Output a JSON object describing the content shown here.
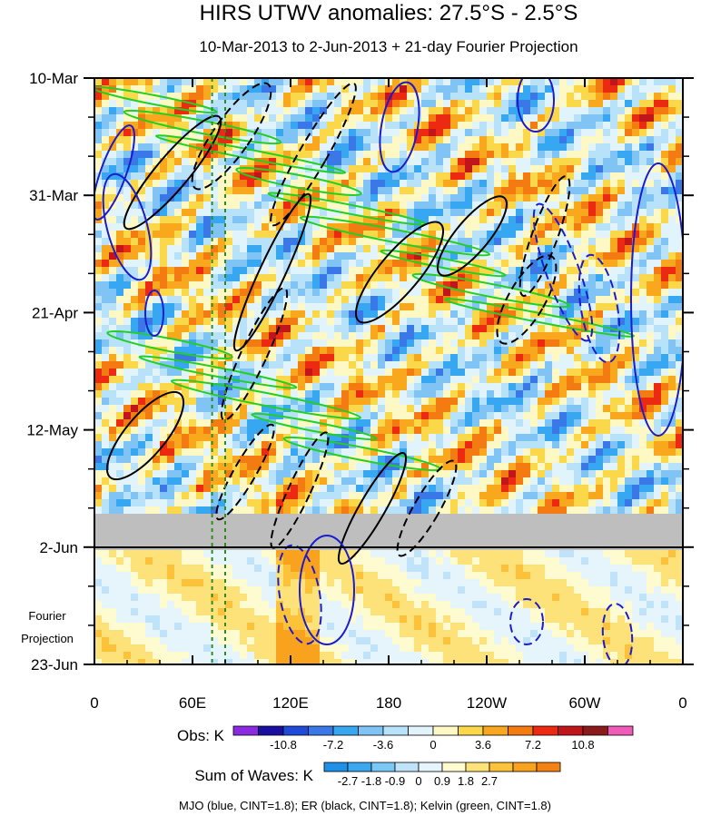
{
  "chart_data": {
    "type": "heatmap",
    "title": "HIRS UTWV anomalies: 27.5°S - 2.5°S",
    "subtitle": "10-Mar-2013 to 2-Jun-2013 + 21-day Fourier Projection",
    "x_ticks": [
      "0",
      "60E",
      "120E",
      "180",
      "120W",
      "60W",
      "0"
    ],
    "x_range": [
      0,
      360
    ],
    "y_ticks": [
      "10-Mar",
      "31-Mar",
      "21-Apr",
      "12-May",
      "2-Jun",
      "23-Jun"
    ],
    "y_range_days": [
      0,
      105
    ],
    "projection_label": [
      "Fourier",
      "Projection"
    ],
    "projection_start_day": 84,
    "observations": {
      "label": "Obs: K",
      "colorbar_labels": [
        "-10.8",
        "-7.2",
        "-3.6",
        "0",
        "3.6",
        "7.2",
        "10.8"
      ],
      "levels": [
        -12.6,
        -10.8,
        -9,
        -7.2,
        -5.4,
        -3.6,
        -1.8,
        0,
        1.8,
        3.6,
        5.4,
        7.2,
        9,
        10.8,
        12.6
      ],
      "colors": [
        "#8a2be2",
        "#1a0fa0",
        "#1f4bd8",
        "#3a78e8",
        "#36a7f0",
        "#7fc4f5",
        "#b8e2fa",
        "#e2f4fb",
        "#fdf8c4",
        "#fbd84a",
        "#f9a81e",
        "#f47b12",
        "#ec2a12",
        "#c0151a",
        "#8b1a1a",
        "#f05ab8"
      ]
    },
    "sum_of_waves": {
      "label": "Sum of Waves: K",
      "colorbar_labels": [
        "-2.7",
        "-1.8",
        "-0.9",
        "0",
        "0.9",
        "1.8",
        "2.7"
      ],
      "colors": [
        "#1e90e8",
        "#3aa8f0",
        "#7ac8f5",
        "#bfe4f9",
        "#e6f5fb",
        "#fffbd0",
        "#fde27a",
        "#fbc23a",
        "#f9a21e",
        "#f48212"
      ]
    },
    "contour_legend": "MJO (blue, CINT=1.8); ER (black, CINT=1.8); Kelvin (green, CINT=1.8)",
    "series": [
      {
        "name": "MJO",
        "color": "#1c1ccd",
        "cint": 1.8
      },
      {
        "name": "ER",
        "color": "#000000",
        "cint": 1.8
      },
      {
        "name": "Kelvin",
        "color": "#22d022",
        "cint": 1.8
      }
    ],
    "reference_lines_lon": [
      72,
      80
    ]
  }
}
